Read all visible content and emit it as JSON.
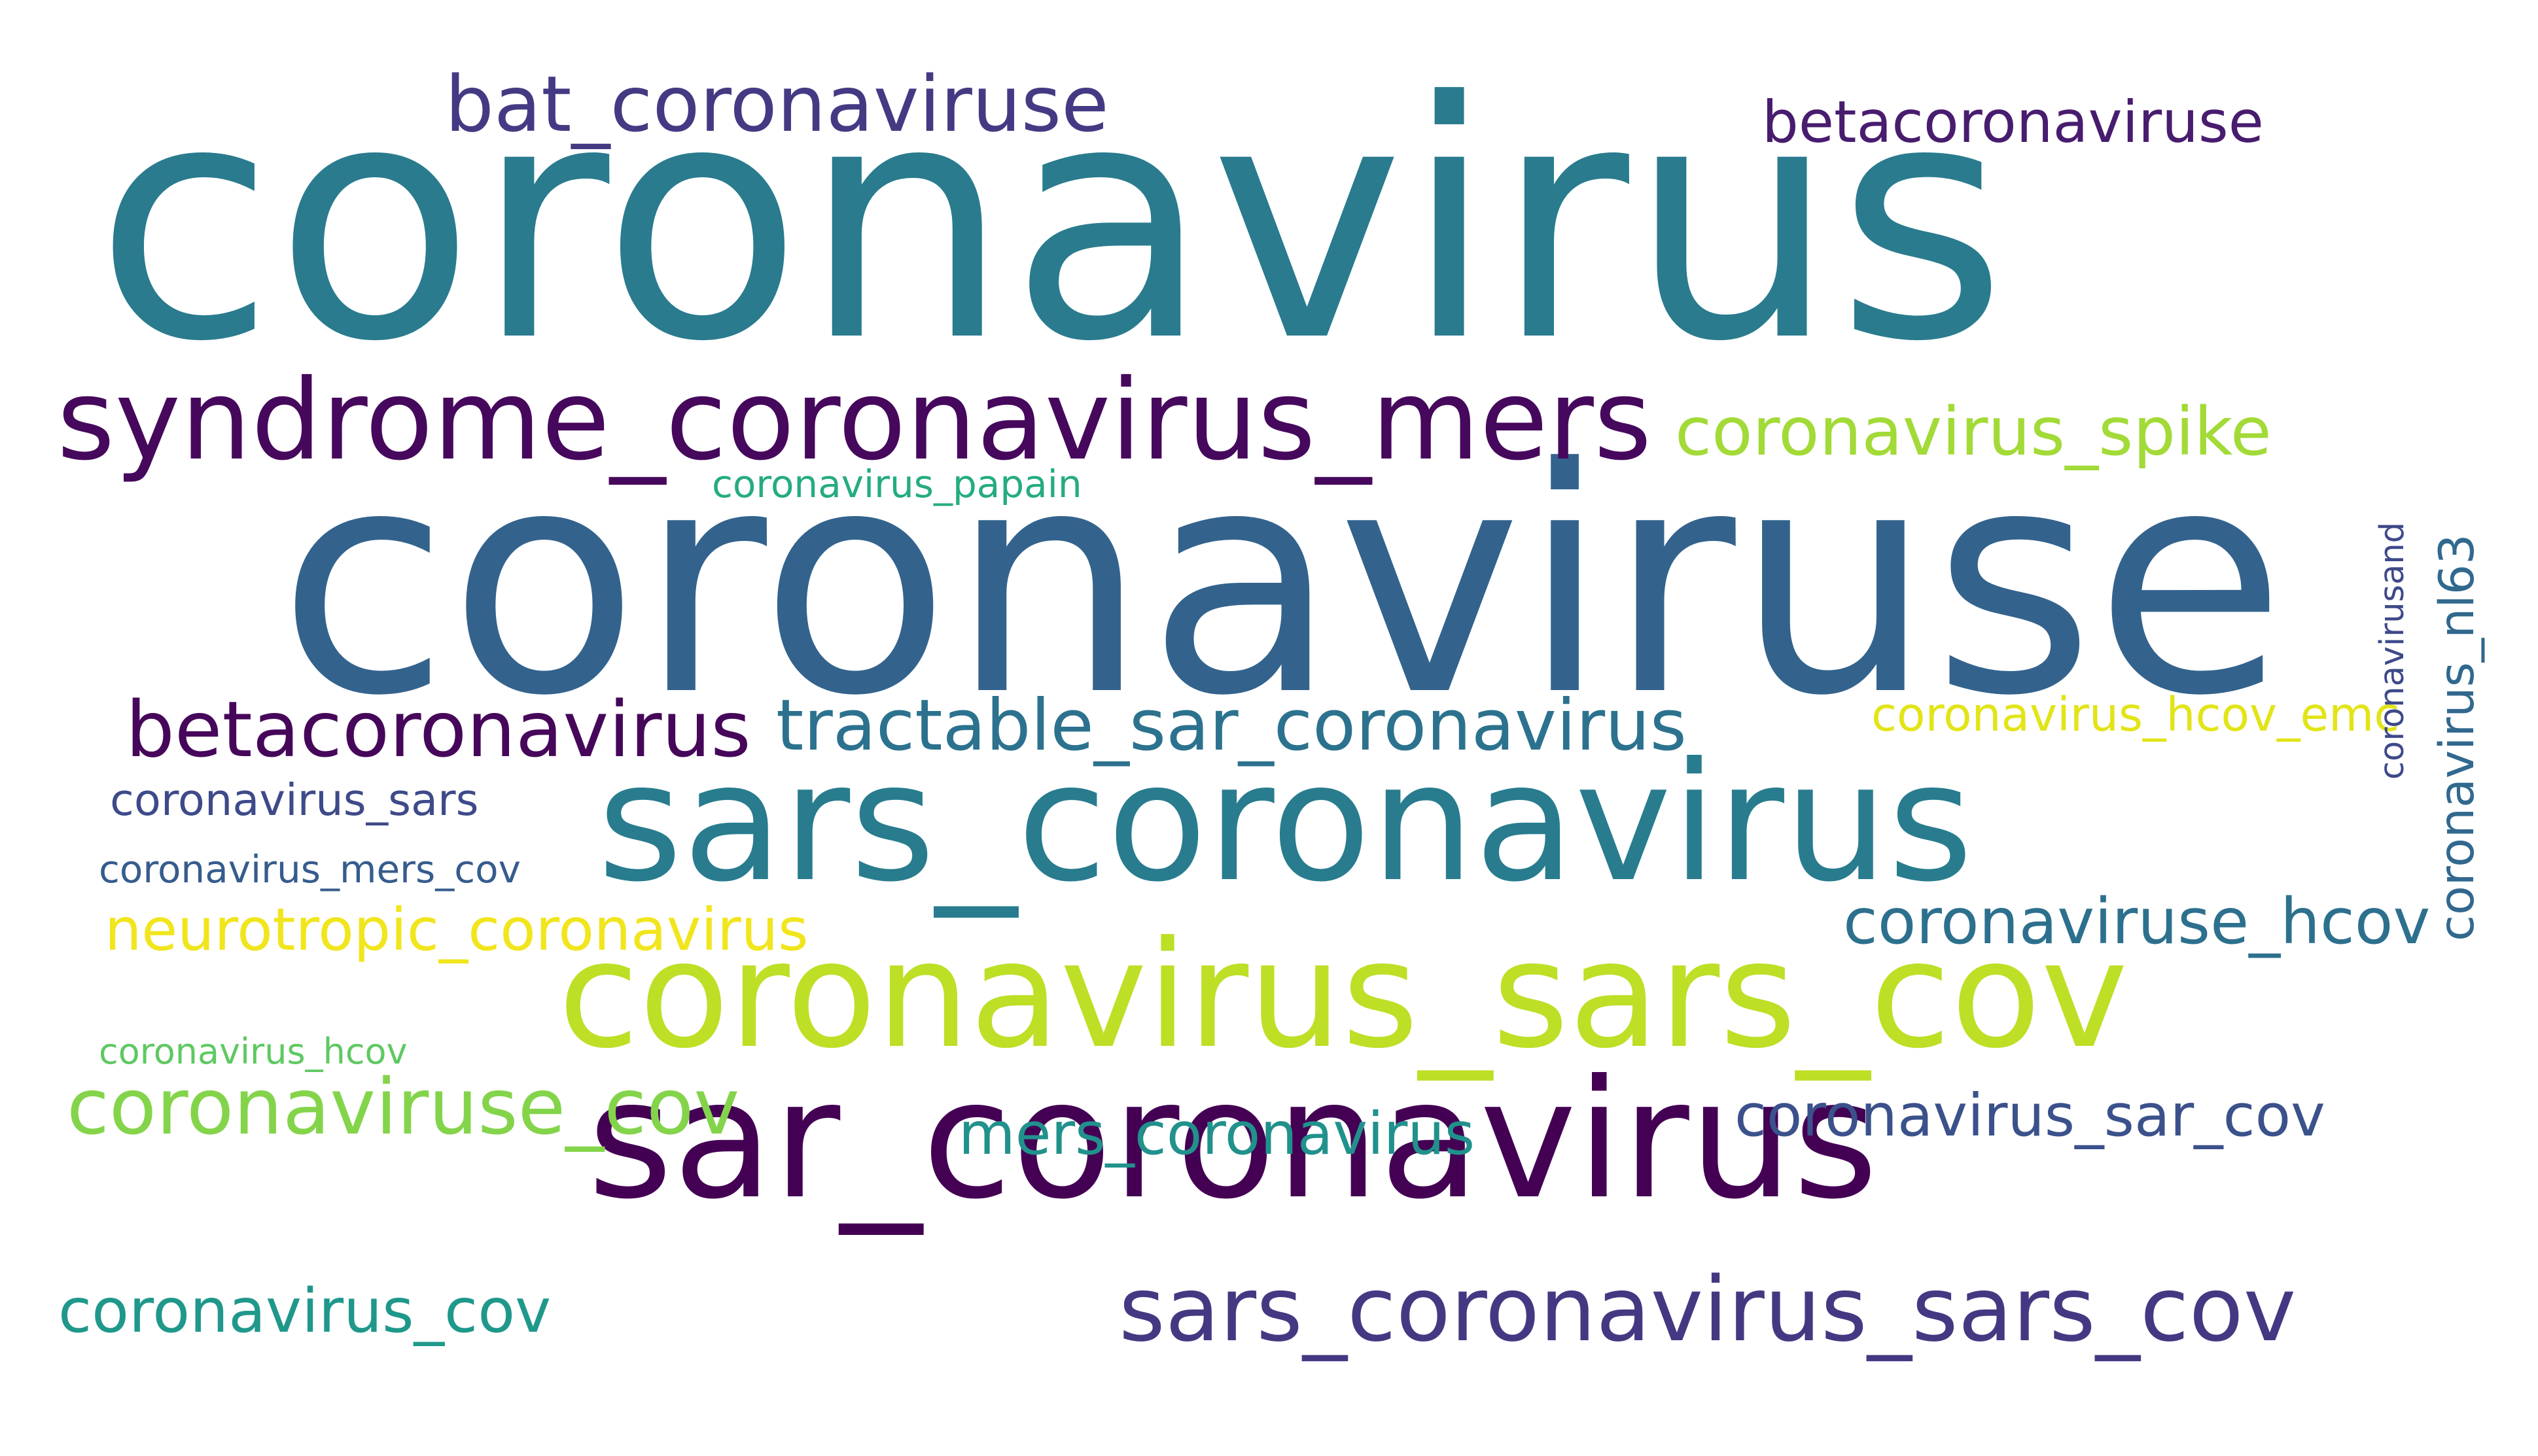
{
  "background": "#ffffff",
  "words": [
    {
      "id": "w1",
      "text": "coronavirus",
      "color": "#2a7b8e",
      "orientation": "horizontal"
    },
    {
      "id": "w2",
      "text": "coronaviruse",
      "color": "#33638d",
      "orientation": "horizontal"
    },
    {
      "id": "w3",
      "text": "sar_coronavirus",
      "color": "#440154",
      "orientation": "horizontal"
    },
    {
      "id": "w4",
      "text": "sars_coronavirus",
      "color": "#287c8e",
      "orientation": "horizontal"
    },
    {
      "id": "w5",
      "text": "coronavirus_sars_cov",
      "color": "#bddf26",
      "orientation": "horizontal"
    },
    {
      "id": "w6",
      "text": "syndrome_coronavirus_mers",
      "color": "#46085c",
      "orientation": "horizontal"
    },
    {
      "id": "w7",
      "text": "sars_coronavirus_sars_cov",
      "color": "#453882",
      "orientation": "horizontal"
    },
    {
      "id": "w8",
      "text": "bat_coronaviruse",
      "color": "#443a83",
      "orientation": "horizontal"
    },
    {
      "id": "w9",
      "text": "betacoronavirus",
      "color": "#46075a",
      "orientation": "horizontal"
    },
    {
      "id": "w10",
      "text": "tractable_sar_coronavirus",
      "color": "#2c728e",
      "orientation": "horizontal"
    },
    {
      "id": "w11",
      "text": "coronaviruse_cov",
      "color": "#84d44b",
      "orientation": "horizontal"
    },
    {
      "id": "w12",
      "text": "coronavirus_spike",
      "color": "#a2da37",
      "orientation": "horizontal"
    },
    {
      "id": "w13",
      "text": "coronaviruse_hcov",
      "color": "#2d708e",
      "orientation": "horizontal"
    },
    {
      "id": "w14",
      "text": "coronavirus_sar_cov",
      "color": "#3b518b",
      "orientation": "horizontal"
    },
    {
      "id": "w15",
      "text": "betacoronaviruse",
      "color": "#481c6e",
      "orientation": "horizontal"
    },
    {
      "id": "w16",
      "text": "coronavirus_cov",
      "color": "#1f988b",
      "orientation": "horizontal"
    },
    {
      "id": "w17",
      "text": "neurotropic_coronavirus",
      "color": "#f1e51d",
      "orientation": "horizontal"
    },
    {
      "id": "w18",
      "text": "mers_coronavirus",
      "color": "#21918c",
      "orientation": "horizontal"
    },
    {
      "id": "w19",
      "text": "coronavirus_hcov_emc",
      "color": "#e2e418",
      "orientation": "horizontal"
    },
    {
      "id": "w20",
      "text": "coronavirus_sars",
      "color": "#3e4a89",
      "orientation": "horizontal"
    },
    {
      "id": "w21",
      "text": "coronavirus_mers_cov",
      "color": "#365c8d",
      "orientation": "horizontal"
    },
    {
      "id": "w22",
      "text": "coronavirus_papain",
      "color": "#25ab82",
      "orientation": "horizontal"
    },
    {
      "id": "w23",
      "text": "coronavirus_hcov",
      "color": "#5ec962",
      "orientation": "horizontal"
    },
    {
      "id": "w24",
      "text": "coronavirus_nl63",
      "color": "#31688e",
      "orientation": "vertical"
    },
    {
      "id": "w25",
      "text": "coronavirusand",
      "color": "#3e4989",
      "orientation": "vertical"
    }
  ]
}
